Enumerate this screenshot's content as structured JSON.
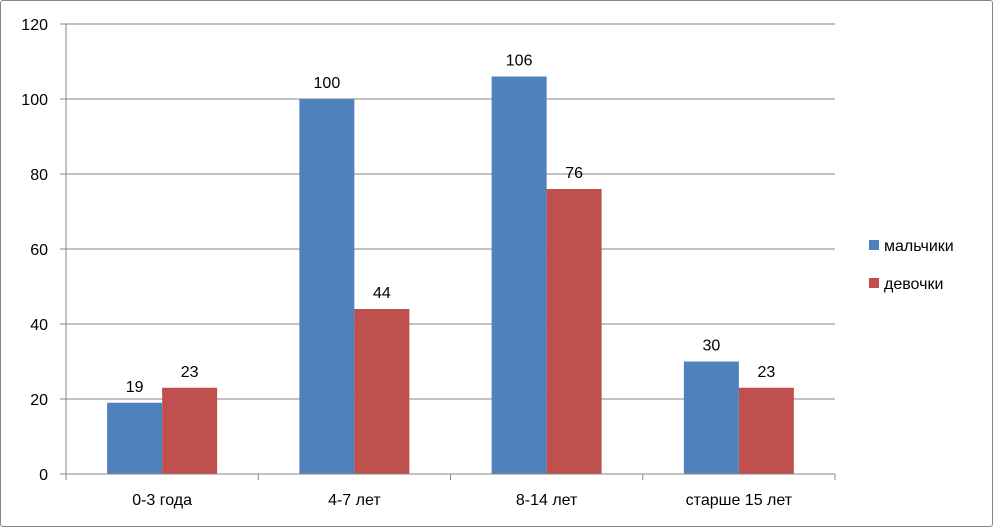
{
  "chart_data": {
    "type": "bar",
    "title": "",
    "xlabel": "",
    "ylabel": "",
    "categories": [
      "0-3 года",
      "4-7 лет",
      "8-14 лет",
      "старше 15 лет"
    ],
    "series": [
      {
        "name": "мальчики",
        "values": [
          19,
          100,
          106,
          30
        ],
        "color": "#4F81BD"
      },
      {
        "name": "девочки",
        "values": [
          23,
          44,
          76,
          23
        ],
        "color": "#C0504D"
      }
    ],
    "ylim": [
      0,
      120
    ],
    "yticks": [
      0,
      20,
      40,
      60,
      80,
      100,
      120
    ],
    "grid": true,
    "legend_position": "right",
    "data_labels": true
  }
}
